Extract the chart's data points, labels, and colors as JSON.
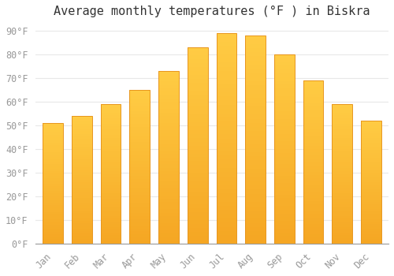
{
  "title": "Average monthly temperatures (°F ) in Biskra",
  "months": [
    "Jan",
    "Feb",
    "Mar",
    "Apr",
    "May",
    "Jun",
    "Jul",
    "Aug",
    "Sep",
    "Oct",
    "Nov",
    "Dec"
  ],
  "values": [
    51,
    54,
    59,
    65,
    73,
    83,
    89,
    88,
    80,
    69,
    59,
    52
  ],
  "bar_color_top": "#FFCC44",
  "bar_color_bottom": "#F5A623",
  "bar_edge_color": "#E8961E",
  "background_color": "#FFFFFF",
  "plot_bg_color": "#FFFFFF",
  "ylim": [
    0,
    93
  ],
  "yticks": [
    0,
    10,
    20,
    30,
    40,
    50,
    60,
    70,
    80,
    90
  ],
  "ytick_labels": [
    "0°F",
    "10°F",
    "20°F",
    "30°F",
    "40°F",
    "50°F",
    "60°F",
    "70°F",
    "80°F",
    "90°F"
  ],
  "title_fontsize": 11,
  "tick_fontsize": 8.5,
  "grid_color": "#e8e8e8",
  "axis_color": "#999999",
  "bar_width": 0.7
}
